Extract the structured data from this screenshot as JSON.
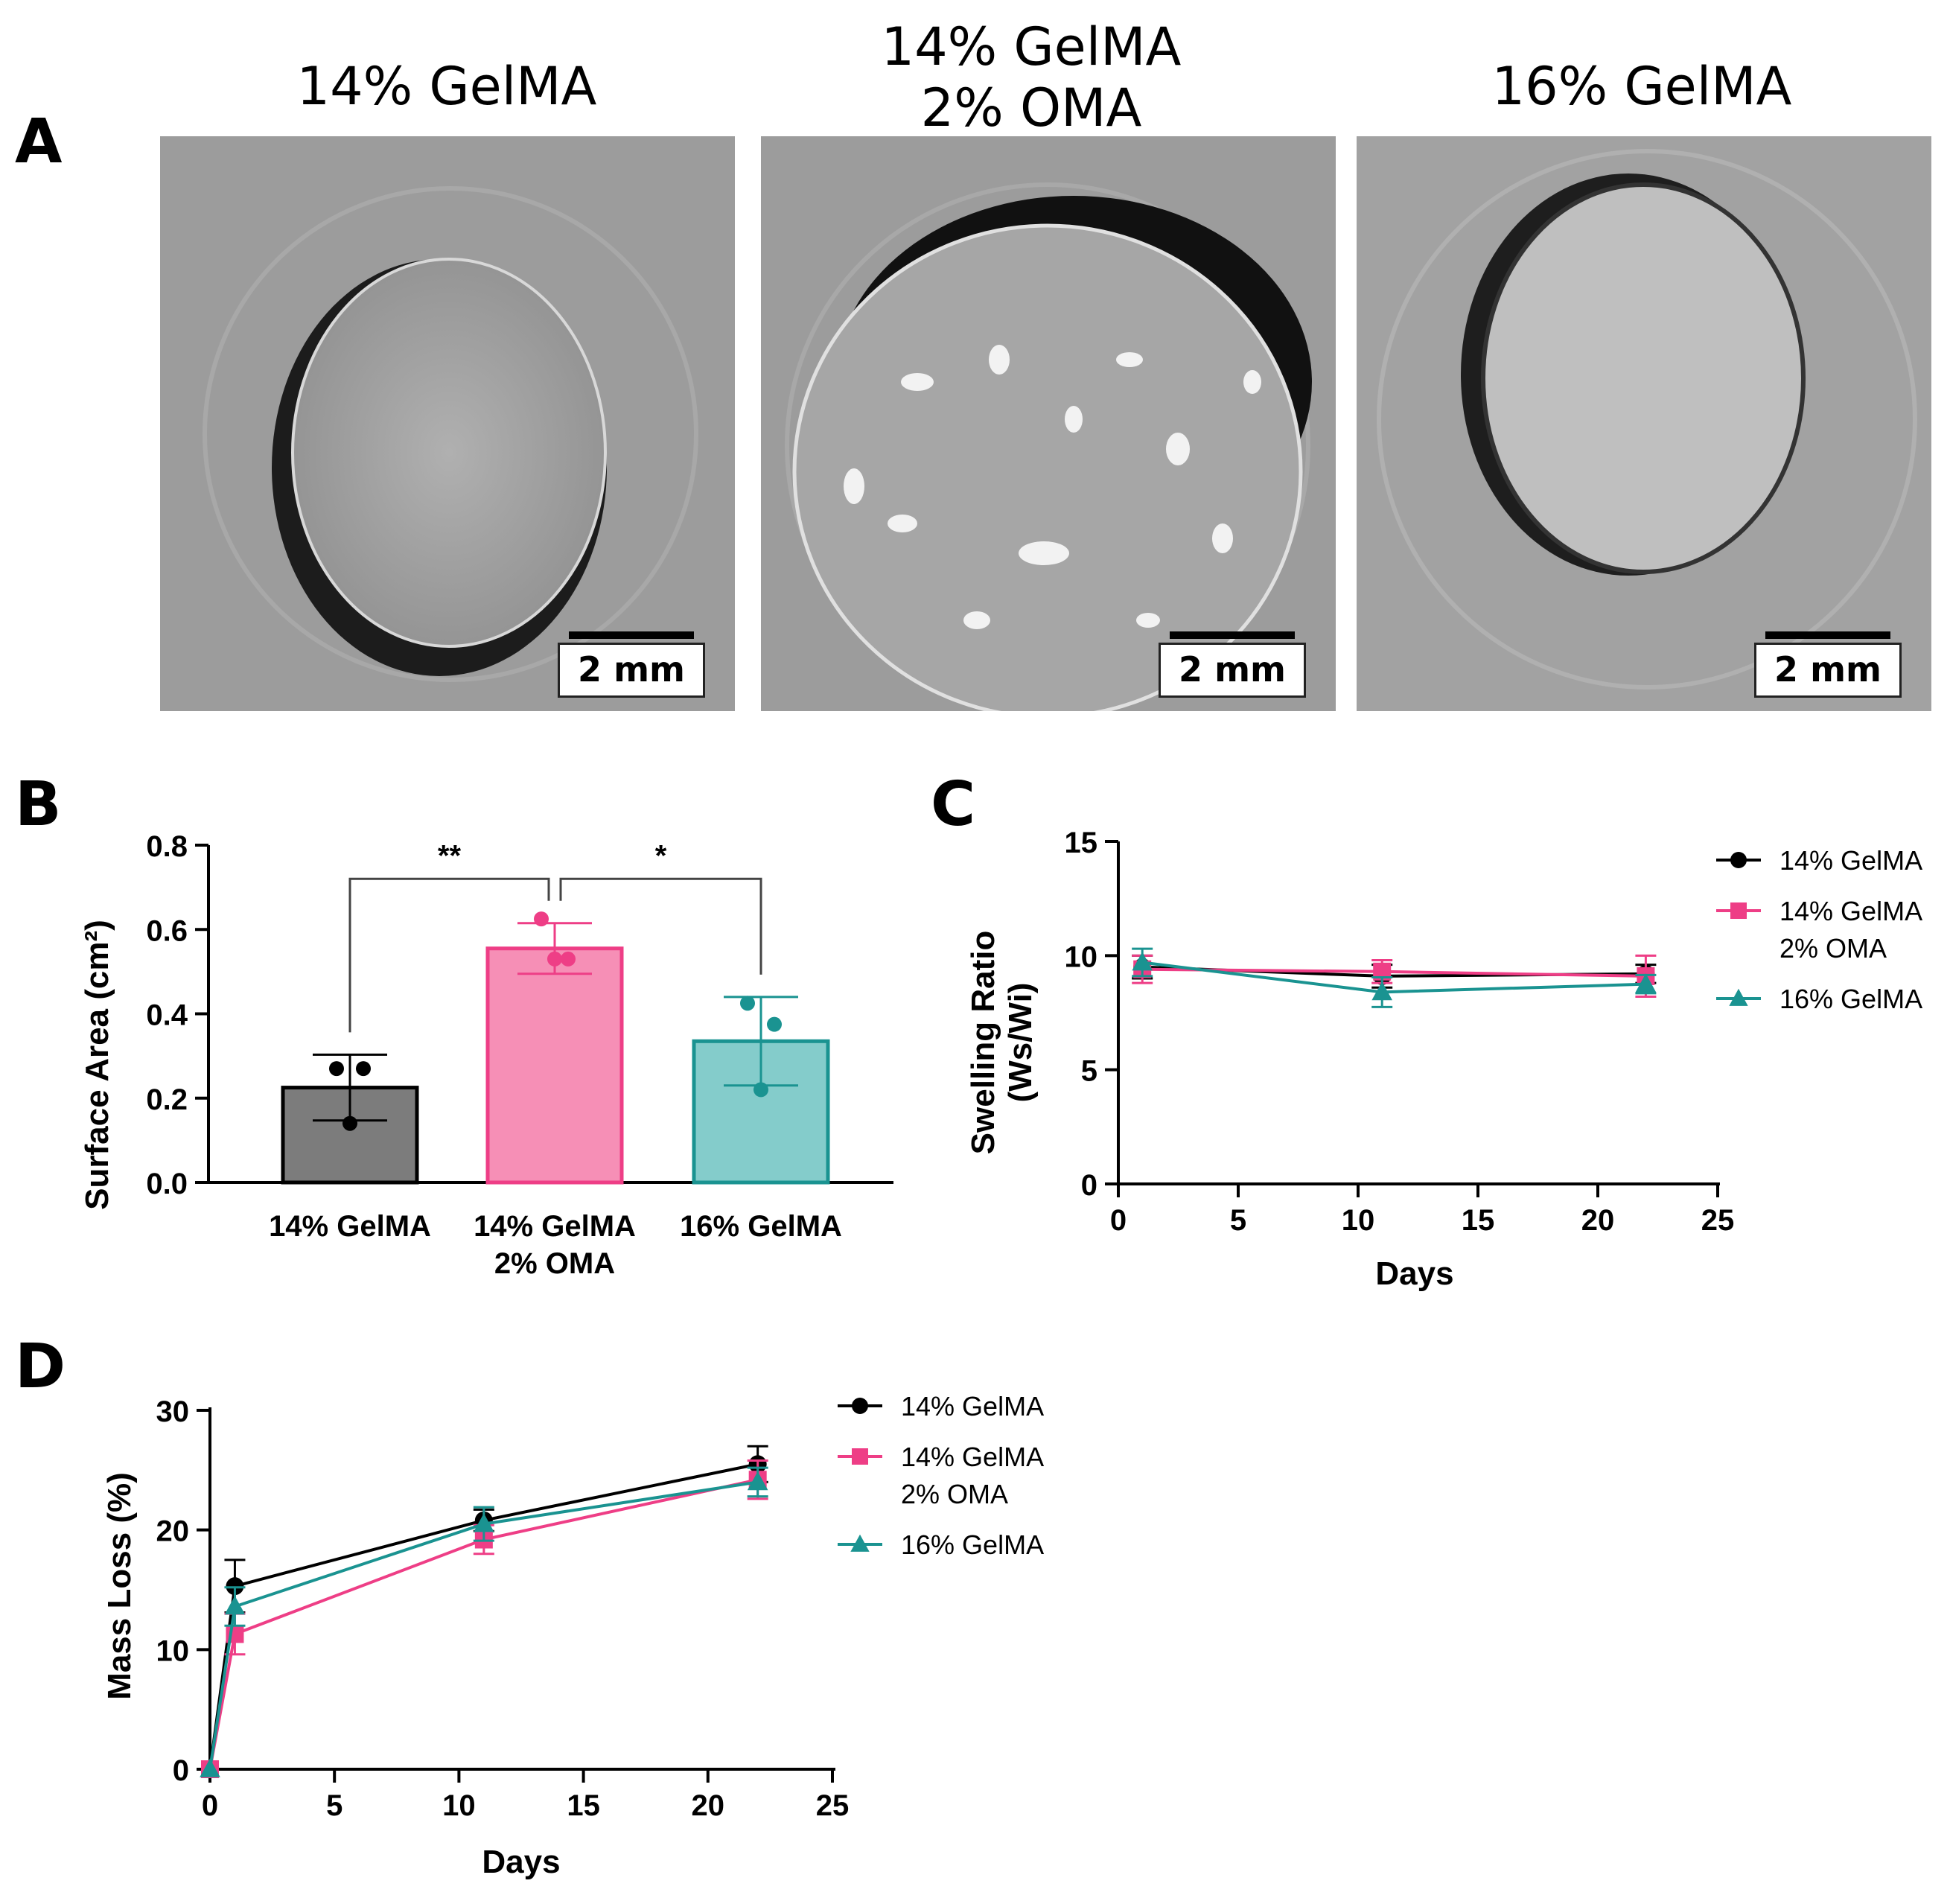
{
  "figure": {
    "panel_letters": {
      "a": "A",
      "b": "B",
      "c": "C",
      "d": "D"
    },
    "micrographs": [
      {
        "title_line1": "14% GelMA",
        "title_line2": "",
        "scale_label": "2 mm"
      },
      {
        "title_line1": "14% GelMA",
        "title_line2": "2% OMA",
        "scale_label": "2 mm"
      },
      {
        "title_line1": "16% GelMA",
        "title_line2": "",
        "scale_label": "2 mm"
      }
    ]
  },
  "colors": {
    "gelma14": "#000000",
    "oma": "#ee3e86",
    "gelma16": "#1a9391",
    "bar_gelma14": "#7c7c7c",
    "bar_oma": "#f68fb6",
    "bar_gelma16": "#84cccb"
  },
  "chart_data": [
    {
      "panel": "B",
      "type": "bar",
      "ylabel": "Surface Area (cm²)",
      "ylim": [
        0,
        0.8
      ],
      "yticks": [
        "0.0",
        "0.2",
        "0.4",
        "0.6",
        "0.8"
      ],
      "categories": [
        {
          "line1": "14% GelMA",
          "line2": ""
        },
        {
          "line1": "14% GelMA",
          "line2": "2% OMA"
        },
        {
          "line1": "16% GelMA",
          "line2": ""
        }
      ],
      "values": [
        0.225,
        0.555,
        0.335
      ],
      "errors": [
        0.078,
        0.06,
        0.105
      ],
      "points": [
        [
          0.27,
          0.27,
          0.14
        ],
        [
          0.625,
          0.53,
          0.53
        ],
        [
          0.425,
          0.375,
          0.22
        ]
      ],
      "significance": [
        {
          "from": 0,
          "to": 1,
          "label": "**"
        },
        {
          "from": 1,
          "to": 2,
          "label": "*"
        }
      ]
    },
    {
      "panel": "C",
      "type": "line",
      "xlabel": "Days",
      "ylabel_line1": "Swelling Ratio",
      "ylabel_line2": "(Ws/Wi)",
      "xlim": [
        0,
        25
      ],
      "ylim": [
        0,
        15
      ],
      "xticks": [
        "0",
        "5",
        "10",
        "15",
        "20",
        "25"
      ],
      "yticks": [
        "0",
        "5",
        "10",
        "15"
      ],
      "x": [
        1,
        11,
        22
      ],
      "series": [
        {
          "name_line1": "14% GelMA",
          "name_line2": "",
          "values": [
            9.5,
            9.1,
            9.2
          ],
          "errors": [
            0.5,
            0.5,
            0.4
          ],
          "marker": "circle"
        },
        {
          "name_line1": "14% GelMA",
          "name_line2": "2% OMA",
          "values": [
            9.4,
            9.3,
            9.1
          ],
          "errors": [
            0.6,
            0.5,
            0.9
          ],
          "marker": "square"
        },
        {
          "name_line1": "16% GelMA",
          "name_line2": "",
          "values": [
            9.7,
            8.4,
            8.75
          ],
          "errors": [
            0.6,
            0.65,
            0.4
          ],
          "marker": "triangle"
        }
      ]
    },
    {
      "panel": "D",
      "type": "line",
      "xlabel": "Days",
      "ylabel": "Mass Loss (%)",
      "xlim": [
        0,
        25
      ],
      "ylim": [
        0,
        30
      ],
      "xticks": [
        "0",
        "5",
        "10",
        "15",
        "20",
        "25"
      ],
      "yticks": [
        "0",
        "10",
        "20",
        "30"
      ],
      "x": [
        0,
        1,
        11,
        22
      ],
      "series": [
        {
          "name_line1": "14% GelMA",
          "name_line2": "",
          "values": [
            0,
            15.3,
            20.8,
            25.5
          ],
          "errors": [
            0,
            2.2,
            0.9,
            1.5
          ],
          "marker": "circle"
        },
        {
          "name_line1": "14% GelMA",
          "name_line2": "2% OMA",
          "values": [
            0,
            11.3,
            19.2,
            24.2
          ],
          "errors": [
            0,
            1.7,
            1.2,
            1.6
          ],
          "marker": "square"
        },
        {
          "name_line1": "16% GelMA",
          "name_line2": "",
          "values": [
            0,
            13.6,
            20.5,
            24.0
          ],
          "errors": [
            0,
            1.6,
            1.4,
            1.2
          ],
          "marker": "triangle"
        }
      ]
    }
  ]
}
